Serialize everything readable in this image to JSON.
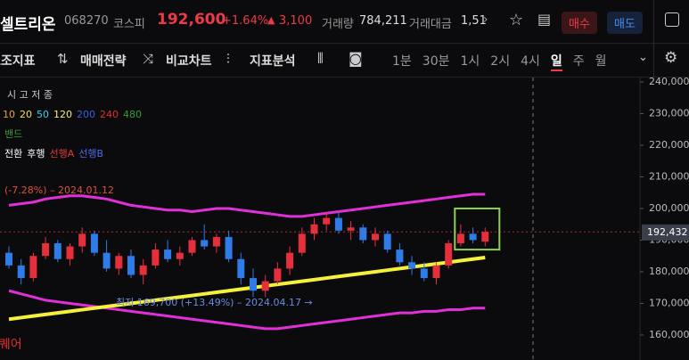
{
  "header": {
    "name": "셀트리온",
    "code": "068270",
    "market": "코스피",
    "price": "192,600",
    "change_pct": "+1.64%",
    "change": "3,100",
    "volume_label": "거래량",
    "volume": "784,211",
    "amount_label": "거래대금",
    "amount": "1,51",
    "buy": "매수",
    "sell": "매도"
  },
  "toolbar": {
    "tools": [
      "보조지표",
      "매매전략",
      "비교차트",
      "지표분석"
    ],
    "intervals": [
      "1분",
      "30분",
      "1시",
      "2시",
      "4시",
      "일",
      "주",
      "월"
    ]
  },
  "legend": {
    "ohlc": "시 고 저 종",
    "ma": [
      {
        "label": "10",
        "color": "#e8a33a"
      },
      {
        "label": "20",
        "color": "#f0e04a"
      },
      {
        "label": "50",
        "color": "#3fd0e8"
      },
      {
        "label": "120",
        "color": "#f5f07a"
      },
      {
        "label": "200",
        "color": "#3a5fe0"
      },
      {
        "label": "240",
        "color": "#e03030"
      },
      {
        "label": "480",
        "color": "#3a9a3a"
      }
    ],
    "band": "밴드",
    "ichimoku": [
      {
        "label": "전환",
        "color": "#ffffff"
      },
      {
        "label": "후행",
        "color": "#ffffff"
      },
      {
        "label": "선행A",
        "color": "#e03a3a"
      },
      {
        "label": "선행B",
        "color": "#4a6ae8"
      }
    ]
  },
  "chart_data": {
    "type": "candlestick",
    "up_color": "#e5303c",
    "down_color": "#2f7be8",
    "candles": [
      [
        186000,
        188000,
        181000,
        182000
      ],
      [
        182000,
        184000,
        176000,
        178000
      ],
      [
        178000,
        186000,
        177000,
        185000
      ],
      [
        185000,
        191000,
        184000,
        189000
      ],
      [
        189000,
        190000,
        183000,
        184000
      ],
      [
        184000,
        189000,
        182000,
        188000
      ],
      [
        188000,
        194000,
        186000,
        192000
      ],
      [
        192000,
        193000,
        185000,
        186000
      ],
      [
        186000,
        190000,
        180000,
        181000
      ],
      [
        181000,
        186000,
        179000,
        185000
      ],
      [
        185000,
        187000,
        178000,
        179000
      ],
      [
        179000,
        184000,
        176000,
        182000
      ],
      [
        182000,
        189000,
        181000,
        187000
      ],
      [
        187000,
        190000,
        183000,
        184000
      ],
      [
        184000,
        188000,
        182000,
        186000
      ],
      [
        186000,
        191000,
        185000,
        190000
      ],
      [
        190000,
        195000,
        187000,
        188000
      ],
      [
        188000,
        192000,
        186000,
        191000
      ],
      [
        191000,
        193000,
        183000,
        184000
      ],
      [
        184000,
        186000,
        176000,
        178000
      ],
      [
        178000,
        181000,
        172000,
        174000
      ],
      [
        174000,
        179000,
        172000,
        177000
      ],
      [
        177000,
        183000,
        176000,
        181000
      ],
      [
        181000,
        188000,
        179000,
        186000
      ],
      [
        186000,
        194000,
        185000,
        192000
      ],
      [
        192000,
        197000,
        190000,
        195000
      ],
      [
        195000,
        199000,
        193000,
        197000
      ],
      [
        197000,
        199000,
        192000,
        193000
      ],
      [
        193000,
        196000,
        190000,
        194000
      ],
      [
        194000,
        195000,
        189000,
        190000
      ],
      [
        190000,
        194000,
        188000,
        192000
      ],
      [
        192000,
        193000,
        186000,
        187000
      ],
      [
        187000,
        189000,
        182000,
        183000
      ],
      [
        183000,
        185000,
        179000,
        181000
      ],
      [
        181000,
        183000,
        177000,
        178000
      ],
      [
        178000,
        183000,
        176000,
        182000
      ],
      [
        182000,
        190000,
        181000,
        189000
      ],
      [
        189000,
        195000,
        188000,
        192000
      ],
      [
        192000,
        194000,
        189000,
        190000
      ],
      [
        189500,
        194000,
        188000,
        192600
      ]
    ],
    "series": [
      {
        "name": "밴드",
        "color": "#e030d8",
        "values": [
          201000,
          201500,
          202000,
          203000,
          203500,
          204000,
          204000,
          203500,
          203000,
          202000,
          201000,
          200500,
          200000,
          199500,
          199500,
          199000,
          199500,
          200000,
          200000,
          199500,
          199000,
          198500,
          198000,
          197500,
          197500,
          198000,
          198500,
          199000,
          199500,
          200000,
          200500,
          201000,
          201500,
          202000,
          202500,
          203000,
          203500,
          204000,
          204500,
          204500
        ]
      },
      {
        "name": "밴드",
        "color": "#e030d8",
        "values": [
          174000,
          173000,
          172000,
          171000,
          170500,
          170000,
          169500,
          169000,
          168500,
          168000,
          167500,
          167000,
          166500,
          166000,
          165500,
          165000,
          164500,
          164000,
          163500,
          163000,
          162500,
          162000,
          162000,
          162500,
          163000,
          163500,
          164000,
          164500,
          165000,
          165500,
          166000,
          166500,
          167000,
          167000,
          167500,
          167500,
          168000,
          168000,
          168500,
          168500
        ]
      },
      {
        "name": "120",
        "color": "#f5f03a",
        "values": [
          165000,
          165500,
          166000,
          166500,
          167000,
          167500,
          168000,
          168500,
          169000,
          169500,
          170000,
          170500,
          171000,
          171500,
          172000,
          172500,
          173000,
          173500,
          174000,
          174500,
          175000,
          175500,
          176000,
          176500,
          177000,
          177500,
          178000,
          178500,
          179000,
          179500,
          180000,
          180500,
          181000,
          181500,
          182000,
          182500,
          183000,
          183500,
          184000,
          184500
        ]
      }
    ],
    "ylim": [
      152100,
      241400
    ],
    "yticks": [
      {
        "value": 240000,
        "label": "240,000"
      },
      {
        "value": 230000,
        "label": "230,000"
      },
      {
        "value": 220000,
        "label": "220,000"
      },
      {
        "value": 210000,
        "label": "210,000"
      },
      {
        "value": 200000,
        "label": "200,000"
      },
      {
        "value": 190000,
        "label": "190,000"
      },
      {
        "value": 180000,
        "label": "180,000"
      },
      {
        "value": 170000,
        "label": "170,000"
      },
      {
        "value": 160000,
        "label": "160,000"
      }
    ],
    "current": {
      "value": 192432,
      "label": "192,432"
    },
    "annotations": {
      "high": "(-7.28%) – 2024.01.12",
      "low": "최저 169,700 (+13.49%) – 2024.04.17 →",
      "square": "스퀘어"
    }
  }
}
